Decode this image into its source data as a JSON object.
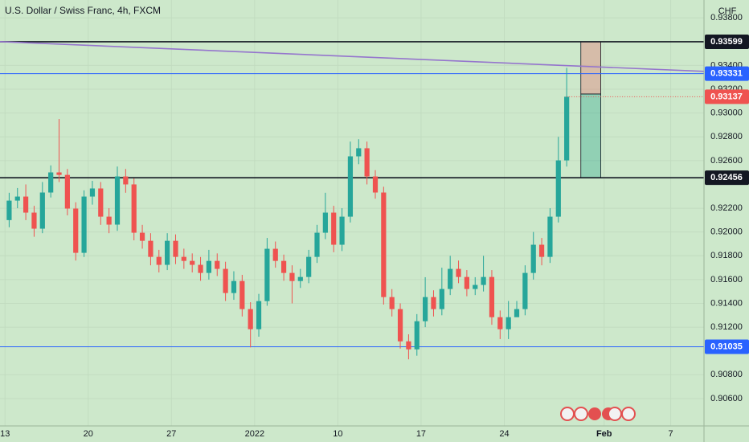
{
  "chart_data": {
    "type": "candlestick",
    "title": "U.S. Dollar / Swiss Franc, 4h, FXCM",
    "currency": "CHF",
    "up_color": "#26a69a",
    "down_color": "#ef5350",
    "x": [
      0.25,
      0.75,
      1.25,
      1.75,
      2.25,
      2.75,
      3.25,
      3.75,
      4.25,
      4.75,
      5.25,
      5.75,
      6.25,
      6.75,
      7.25,
      7.75,
      8.25,
      8.75,
      9.25,
      9.75,
      10.25,
      10.75,
      11.25,
      11.75,
      12.25,
      12.75,
      13.25,
      13.75,
      14.25,
      14.75,
      15.25,
      15.75,
      16.25,
      16.75,
      17.25,
      17.75,
      18.25,
      18.75,
      19.25,
      19.75,
      20.25,
      20.75,
      21.25,
      21.75,
      22.25,
      22.75,
      23.25,
      23.75,
      24.25,
      24.75,
      25.25,
      25.75,
      26.25,
      26.75,
      27.25,
      27.75,
      28.25,
      28.75,
      29.25,
      29.75,
      30.25,
      30.75,
      31.25,
      31.75,
      32.25,
      32.75,
      33.25,
      33.75
    ],
    "open": [
      0.921,
      0.92264,
      0.92298,
      0.92163,
      0.92028,
      0.92332,
      0.92501,
      0.9248,
      0.92197,
      0.91825,
      0.92298,
      0.92366,
      0.92129,
      0.92062,
      0.92467,
      0.924,
      0.91994,
      0.91926,
      0.91791,
      0.91724,
      0.91926,
      0.91791,
      0.91757,
      0.91724,
      0.91656,
      0.91757,
      0.9169,
      0.91487,
      0.91588,
      0.91352,
      0.91183,
      0.91419,
      0.91859,
      0.91757,
      0.91656,
      0.91588,
      0.91622,
      0.91791,
      0.91994,
      0.92163,
      0.91893,
      0.92129,
      0.92636,
      0.92704,
      0.92467,
      0.92332,
      0.91453,
      0.91352,
      0.91081,
      0.91014,
      0.9125,
      0.91453,
      0.91352,
      0.91521,
      0.9169,
      0.91622,
      0.91521,
      0.91555,
      0.91622,
      0.91284,
      0.91183,
      0.91284,
      0.91352,
      0.91656,
      0.91893,
      0.91791,
      0.92129,
      0.92602
    ],
    "high": [
      0.9233,
      0.9237,
      0.924,
      0.9222,
      0.9242,
      0.9256,
      0.9295,
      0.9253,
      0.9225,
      0.9235,
      0.9243,
      0.9242,
      0.922,
      0.9255,
      0.9253,
      0.9245,
      0.9206,
      0.9199,
      0.9185,
      0.9199,
      0.9198,
      0.9186,
      0.9182,
      0.9179,
      0.9185,
      0.9182,
      0.9175,
      0.9167,
      0.9164,
      0.9141,
      0.9148,
      0.9195,
      0.9192,
      0.9181,
      0.9172,
      0.9169,
      0.9185,
      0.9206,
      0.9233,
      0.9222,
      0.922,
      0.9276,
      0.9278,
      0.9276,
      0.9252,
      0.9238,
      0.9152,
      0.914,
      0.9114,
      0.9131,
      0.9162,
      0.9151,
      0.917,
      0.918,
      0.9176,
      0.9168,
      0.9162,
      0.918,
      0.9168,
      0.9134,
      0.9142,
      0.9142,
      0.9172,
      0.92,
      0.9195,
      0.922,
      0.928,
      0.9338
    ],
    "low": [
      0.9204,
      0.922,
      0.921,
      0.9196,
      0.9199,
      0.9229,
      0.9242,
      0.9214,
      0.9176,
      0.9179,
      0.9223,
      0.9206,
      0.9199,
      0.9201,
      0.9233,
      0.9193,
      0.9186,
      0.9172,
      0.9166,
      0.9168,
      0.9173,
      0.9169,
      0.9166,
      0.9159,
      0.916,
      0.9163,
      0.9142,
      0.9143,
      0.9129,
      0.9103,
      0.9112,
      0.9138,
      0.917,
      0.9159,
      0.914,
      0.9153,
      0.9157,
      0.9174,
      0.9194,
      0.9183,
      0.9184,
      0.9208,
      0.9257,
      0.924,
      0.9228,
      0.9139,
      0.9129,
      0.9102,
      0.9093,
      0.9096,
      0.912,
      0.9129,
      0.913,
      0.9147,
      0.9157,
      0.9146,
      0.9147,
      0.915,
      0.9122,
      0.911,
      0.911,
      0.9129,
      0.913,
      0.916,
      0.9172,
      0.9174,
      0.9208,
      0.9255
    ],
    "close": [
      0.92264,
      0.92298,
      0.92163,
      0.92028,
      0.92332,
      0.92501,
      0.9248,
      0.92197,
      0.91825,
      0.92298,
      0.92366,
      0.92129,
      0.92062,
      0.92467,
      0.924,
      0.91994,
      0.91926,
      0.91791,
      0.91724,
      0.91926,
      0.91791,
      0.91757,
      0.91724,
      0.91656,
      0.91757,
      0.9169,
      0.91487,
      0.91588,
      0.91352,
      0.91183,
      0.91419,
      0.91859,
      0.91757,
      0.91656,
      0.91588,
      0.91622,
      0.91791,
      0.91994,
      0.92163,
      0.91893,
      0.92129,
      0.92636,
      0.92704,
      0.92467,
      0.92332,
      0.91453,
      0.91352,
      0.91081,
      0.91014,
      0.9125,
      0.91453,
      0.91352,
      0.91521,
      0.9169,
      0.91622,
      0.91521,
      0.91555,
      0.91622,
      0.91284,
      0.91183,
      0.91284,
      0.91352,
      0.91656,
      0.91893,
      0.91791,
      0.92129,
      0.92602,
      0.93137
    ],
    "xlim": [
      -0.3,
      42
    ],
    "xticks": [
      {
        "value": 0,
        "label": "13"
      },
      {
        "value": 5,
        "label": "20"
      },
      {
        "value": 10,
        "label": "27"
      },
      {
        "value": 15,
        "label": "2022"
      },
      {
        "value": 20,
        "label": "10"
      },
      {
        "value": 25,
        "label": "17"
      },
      {
        "value": 30,
        "label": "24"
      },
      {
        "value": 36,
        "label": "Feb"
      },
      {
        "value": 40,
        "label": "7"
      }
    ],
    "ylim": [
      0.9037,
      0.9395
    ],
    "yticks": [
      {
        "value": 0.938,
        "label": "0.93800"
      },
      {
        "value": 0.934,
        "label": "0.93400"
      },
      {
        "value": 0.932,
        "label": "0.93200"
      },
      {
        "value": 0.93,
        "label": "0.93000"
      },
      {
        "value": 0.928,
        "label": "0.92800"
      },
      {
        "value": 0.926,
        "label": "0.92600"
      },
      {
        "value": 0.922,
        "label": "0.92200"
      },
      {
        "value": 0.92,
        "label": "0.92000"
      },
      {
        "value": 0.918,
        "label": "0.91800"
      },
      {
        "value": 0.916,
        "label": "0.91600"
      },
      {
        "value": 0.914,
        "label": "0.91400"
      },
      {
        "value": 0.912,
        "label": "0.91200"
      },
      {
        "value": 0.908,
        "label": "0.90800"
      },
      {
        "value": 0.906,
        "label": "0.90600"
      }
    ],
    "levels": [
      {
        "value": 0.93599,
        "color": "#131722"
      },
      {
        "value": 0.93331,
        "color": "#2962ff"
      },
      {
        "value": 0.92456,
        "color": "#131722"
      },
      {
        "value": 0.91035,
        "color": "#2962ff"
      }
    ],
    "trendline": {
      "x": [
        -0.3,
        42
      ],
      "values": [
        0.936,
        0.9335
      ],
      "color": "#9575cd"
    },
    "position": {
      "x": [
        34.6,
        35.8
      ],
      "entry": 0.9316,
      "stop": 0.93599,
      "target": 0.92456
    }
  }
}
